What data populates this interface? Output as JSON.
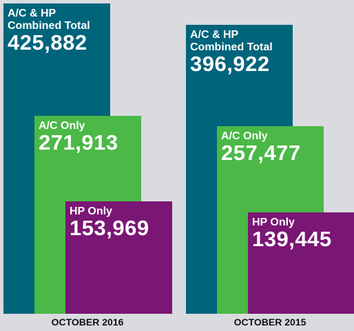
{
  "chart_data": {
    "type": "bar",
    "categories": [
      "OCTOBER 2016",
      "OCTOBER 2015"
    ],
    "series": [
      {
        "name": "A/C & HP\nCombined Total",
        "color": "#00647b",
        "values": [
          425882,
          396922
        ],
        "value_labels": [
          "425,882",
          "396,922"
        ]
      },
      {
        "name": "A/C Only",
        "color": "#4bb847",
        "values": [
          271913,
          257477
        ],
        "value_labels": [
          "271,913",
          "257,477"
        ]
      },
      {
        "name": "HP Only",
        "color": "#7a1674",
        "values": [
          153969,
          139445
        ],
        "value_labels": [
          "153,969",
          "139,445"
        ]
      }
    ]
  }
}
